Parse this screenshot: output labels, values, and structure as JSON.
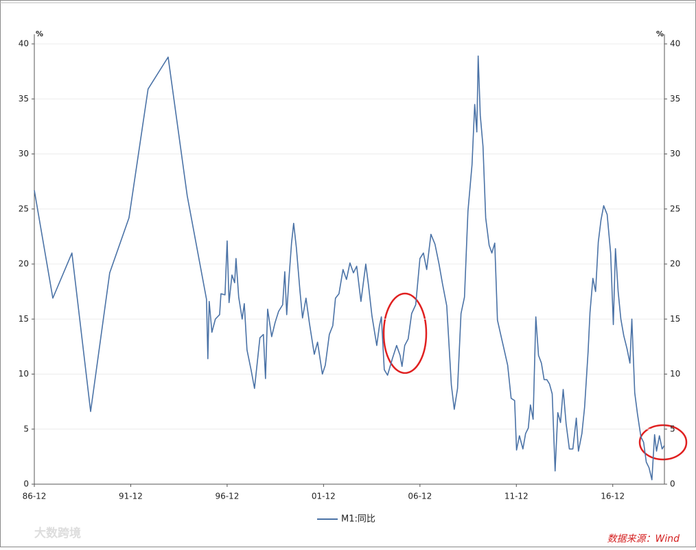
{
  "chart_data": {
    "type": "line",
    "y_label": "%",
    "y2_label": "%",
    "legend_position": "bottom",
    "source": "数据来源：Wind",
    "watermark": "大数跨境",
    "xlim": [
      1986.92,
      2019.6
    ],
    "xticks": [
      {
        "value": 1986.92,
        "label": "86-12"
      },
      {
        "value": 1991.92,
        "label": "91-12"
      },
      {
        "value": 1996.92,
        "label": "96-12"
      },
      {
        "value": 2001.92,
        "label": "01-12"
      },
      {
        "value": 2006.92,
        "label": "06-12"
      },
      {
        "value": 2011.92,
        "label": "11-12"
      },
      {
        "value": 2016.92,
        "label": "16-12"
      }
    ],
    "ylim": [
      0,
      40
    ],
    "yticks": [
      0,
      5,
      10,
      15,
      20,
      25,
      30,
      35,
      40
    ],
    "y2lim": [
      0,
      40
    ],
    "y2ticks": [
      0,
      5,
      10,
      15,
      20,
      25,
      30,
      35,
      40
    ],
    "grid": true,
    "x": [
      1986.92,
      1987.88,
      1988.87,
      1989.84,
      1990.83,
      1991.83,
      1992.82,
      1993.86,
      1994.85,
      1995.85,
      1995.92,
      1995.99,
      1996.13,
      1996.31,
      1996.53,
      1996.6,
      1996.81,
      1996.92,
      1997.02,
      1997.17,
      1997.31,
      1997.38,
      1997.52,
      1997.7,
      1997.81,
      1997.95,
      1998.16,
      1998.34,
      1998.48,
      1998.62,
      1998.8,
      1998.91,
      1999.02,
      1999.23,
      1999.41,
      1999.59,
      1999.8,
      1999.91,
      2000.01,
      2000.12,
      2000.26,
      2000.37,
      2000.51,
      2000.69,
      2000.83,
      2001.01,
      2001.19,
      2001.44,
      2001.61,
      2001.86,
      2002.01,
      2002.22,
      2002.4,
      2002.54,
      2002.72,
      2002.93,
      2003.11,
      2003.29,
      2003.47,
      2003.64,
      2003.86,
      2004.11,
      2004.25,
      2004.43,
      2004.68,
      2004.82,
      2004.92,
      2005.07,
      2005.24,
      2005.49,
      2005.71,
      2005.89,
      2005.99,
      2006.13,
      2006.31,
      2006.49,
      2006.7,
      2006.92,
      2007.1,
      2007.27,
      2007.49,
      2007.7,
      2007.91,
      2008.09,
      2008.31,
      2008.55,
      2008.7,
      2008.87,
      2009.05,
      2009.23,
      2009.41,
      2009.62,
      2009.76,
      2009.87,
      2009.94,
      2010.05,
      2010.19,
      2010.33,
      2010.51,
      2010.65,
      2010.8,
      2010.94,
      2011.12,
      2011.29,
      2011.47,
      2011.65,
      2011.83,
      2011.93,
      2012.08,
      2012.26,
      2012.4,
      2012.54,
      2012.65,
      2012.79,
      2012.93,
      2013.07,
      2013.22,
      2013.36,
      2013.5,
      2013.64,
      2013.78,
      2013.93,
      2014.07,
      2014.21,
      2014.35,
      2014.5,
      2014.67,
      2014.85,
      2015.03,
      2015.14,
      2015.32,
      2015.46,
      2015.64,
      2015.74,
      2015.89,
      2016.03,
      2016.17,
      2016.31,
      2016.45,
      2016.63,
      2016.81,
      2016.95,
      2017.06,
      2017.2,
      2017.34,
      2017.49,
      2017.66,
      2017.81,
      2017.91,
      2018.06,
      2018.2,
      2018.38,
      2018.52,
      2018.66,
      2018.8,
      2018.95,
      2019.09,
      2019.19,
      2019.34,
      2019.48,
      2019.59
    ],
    "series": [
      {
        "name": "M1:同比",
        "color": "#4a72a6",
        "values": [
          26.7,
          16.9,
          21.0,
          6.6,
          19.2,
          24.2,
          35.9,
          38.8,
          26.2,
          16.8,
          11.4,
          16.6,
          13.8,
          15.0,
          15.4,
          17.3,
          17.2,
          22.1,
          16.5,
          19.0,
          18.3,
          20.5,
          17.0,
          15.0,
          16.4,
          12.2,
          10.4,
          8.7,
          11.0,
          13.3,
          13.6,
          9.6,
          15.9,
          13.4,
          14.7,
          15.7,
          16.3,
          19.3,
          15.4,
          18.5,
          21.9,
          23.7,
          21.5,
          17.7,
          15.1,
          16.9,
          14.6,
          11.8,
          12.9,
          10.0,
          10.8,
          13.6,
          14.4,
          16.9,
          17.3,
          19.5,
          18.6,
          20.1,
          19.2,
          19.8,
          16.6,
          20.0,
          18.1,
          15.3,
          12.6,
          14.4,
          15.2,
          10.4,
          9.9,
          11.4,
          12.6,
          11.7,
          10.7,
          12.6,
          13.2,
          15.5,
          16.3,
          20.5,
          21.0,
          19.5,
          22.7,
          21.8,
          20.0,
          18.2,
          16.2,
          9.0,
          6.8,
          8.7,
          15.5,
          17.0,
          24.8,
          29.0,
          34.5,
          32.0,
          38.9,
          33.5,
          30.7,
          24.2,
          21.7,
          21.0,
          21.9,
          14.9,
          13.5,
          12.2,
          10.8,
          7.8,
          7.6,
          3.1,
          4.4,
          3.2,
          4.6,
          5.1,
          7.2,
          5.9,
          15.2,
          11.7,
          11.0,
          9.5,
          9.5,
          9.1,
          8.2,
          1.2,
          6.5,
          5.6,
          8.6,
          5.5,
          3.2,
          3.2,
          6.0,
          3.0,
          4.6,
          7.0,
          12.0,
          15.6,
          18.7,
          17.5,
          22.0,
          24.0,
          25.3,
          24.5,
          21.0,
          14.5,
          21.4,
          17.5,
          15.0,
          13.5,
          12.3,
          11.0,
          15.0,
          8.3,
          6.4,
          4.3,
          3.8,
          2.0,
          1.5,
          0.4,
          4.5,
          3.0,
          4.4,
          3.2,
          3.5
        ]
      }
    ]
  }
}
